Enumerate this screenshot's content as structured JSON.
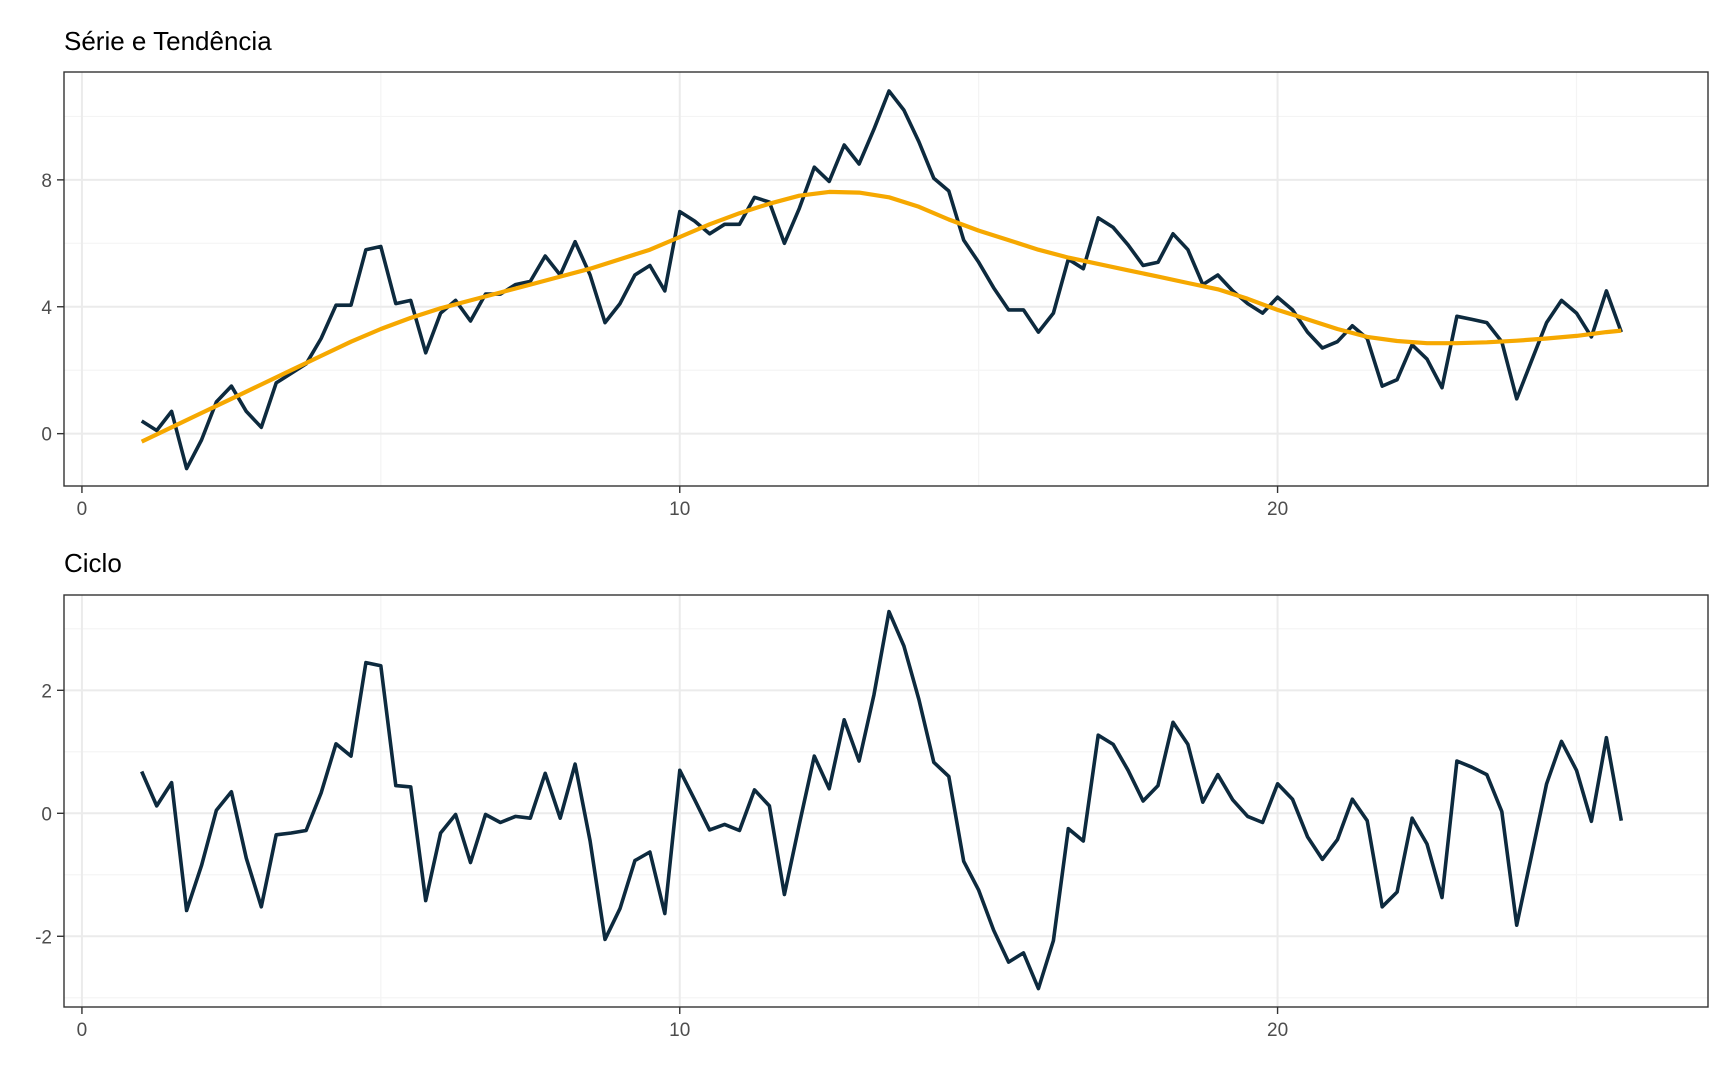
{
  "chart_data": [
    {
      "type": "line",
      "title": "Série e Tendência",
      "xlabel": "",
      "ylabel": "",
      "xlim": [
        -0.3,
        27.2
      ],
      "ylim": [
        -1.65,
        11.4
      ],
      "x_ticks": [
        0,
        10,
        20
      ],
      "y_ticks": [
        0,
        4,
        8
      ],
      "x_tick_labels": [
        "0",
        "10",
        "20"
      ],
      "y_tick_labels": [
        "0",
        "4",
        "8"
      ],
      "grid": true,
      "legend": "none",
      "series": [
        {
          "color": "#0d2a3e",
          "points": [
            [
              1.0,
              0.4
            ],
            [
              1.25,
              0.1
            ],
            [
              1.5,
              0.7
            ],
            [
              1.75,
              -1.1
            ],
            [
              2.0,
              -0.2
            ],
            [
              2.25,
              1.0
            ],
            [
              2.5,
              1.5
            ],
            [
              2.75,
              0.7
            ],
            [
              3.0,
              0.2
            ],
            [
              3.25,
              1.6
            ],
            [
              3.5,
              1.9
            ],
            [
              3.75,
              2.2
            ],
            [
              4.0,
              3.0
            ],
            [
              4.25,
              4.05
            ],
            [
              4.5,
              4.05
            ],
            [
              4.75,
              5.8
            ],
            [
              5.0,
              5.9
            ],
            [
              5.25,
              4.1
            ],
            [
              5.5,
              4.2
            ],
            [
              5.75,
              2.55
            ],
            [
              6.0,
              3.8
            ],
            [
              6.25,
              4.2
            ],
            [
              6.5,
              3.55
            ],
            [
              6.75,
              4.4
            ],
            [
              7.0,
              4.4
            ],
            [
              7.25,
              4.7
            ],
            [
              7.5,
              4.8
            ],
            [
              7.75,
              5.6
            ],
            [
              8.0,
              5.0
            ],
            [
              8.25,
              6.05
            ],
            [
              8.5,
              5.0
            ],
            [
              8.75,
              3.5
            ],
            [
              9.0,
              4.1
            ],
            [
              9.25,
              5.0
            ],
            [
              9.5,
              5.3
            ],
            [
              9.75,
              4.5
            ],
            [
              10.0,
              7.0
            ],
            [
              10.25,
              6.7
            ],
            [
              10.5,
              6.3
            ],
            [
              10.75,
              6.6
            ],
            [
              11.0,
              6.6
            ],
            [
              11.25,
              7.45
            ],
            [
              11.5,
              7.3
            ],
            [
              11.75,
              6.0
            ],
            [
              12.0,
              7.1
            ],
            [
              12.25,
              8.4
            ],
            [
              12.5,
              7.95
            ],
            [
              12.75,
              9.1
            ],
            [
              13.0,
              8.5
            ],
            [
              13.25,
              9.6
            ],
            [
              13.5,
              10.8
            ],
            [
              13.75,
              10.2
            ],
            [
              14.0,
              9.2
            ],
            [
              14.25,
              8.05
            ],
            [
              14.5,
              7.65
            ],
            [
              14.75,
              6.1
            ],
            [
              15.0,
              5.4
            ],
            [
              15.25,
              4.6
            ],
            [
              15.5,
              3.9
            ],
            [
              15.75,
              3.9
            ],
            [
              16.0,
              3.2
            ],
            [
              16.25,
              3.8
            ],
            [
              16.5,
              5.5
            ],
            [
              16.75,
              5.2
            ],
            [
              17.0,
              6.8
            ],
            [
              17.25,
              6.5
            ],
            [
              17.5,
              5.95
            ],
            [
              17.75,
              5.3
            ],
            [
              18.0,
              5.4
            ],
            [
              18.25,
              6.3
            ],
            [
              18.5,
              5.8
            ],
            [
              18.75,
              4.7
            ],
            [
              19.0,
              5.0
            ],
            [
              19.25,
              4.5
            ],
            [
              19.5,
              4.1
            ],
            [
              19.75,
              3.8
            ],
            [
              20.0,
              4.3
            ],
            [
              20.25,
              3.9
            ],
            [
              20.5,
              3.2
            ],
            [
              20.75,
              2.7
            ],
            [
              21.0,
              2.9
            ],
            [
              21.25,
              3.4
            ],
            [
              21.5,
              3.0
            ],
            [
              21.75,
              1.5
            ],
            [
              22.0,
              1.7
            ],
            [
              22.25,
              2.8
            ],
            [
              22.5,
              2.35
            ],
            [
              22.75,
              1.45
            ],
            [
              23.0,
              3.7
            ],
            [
              23.25,
              3.6
            ],
            [
              23.5,
              3.5
            ],
            [
              23.75,
              2.9
            ],
            [
              24.0,
              1.1
            ],
            [
              24.25,
              2.3
            ],
            [
              24.5,
              3.5
            ],
            [
              24.75,
              4.2
            ],
            [
              25.0,
              3.8
            ],
            [
              25.25,
              3.05
            ],
            [
              25.5,
              4.5
            ],
            [
              25.75,
              3.2
            ]
          ]
        },
        {
          "color": "#f6a800",
          "points": [
            [
              1.0,
              -0.25
            ],
            [
              1.5,
              0.2
            ],
            [
              2.0,
              0.65
            ],
            [
              2.5,
              1.1
            ],
            [
              3.0,
              1.55
            ],
            [
              3.5,
              2.0
            ],
            [
              4.0,
              2.45
            ],
            [
              4.5,
              2.9
            ],
            [
              5.0,
              3.3
            ],
            [
              5.5,
              3.65
            ],
            [
              6.0,
              3.95
            ],
            [
              6.5,
              4.2
            ],
            [
              7.0,
              4.45
            ],
            [
              7.5,
              4.7
            ],
            [
              8.0,
              4.95
            ],
            [
              8.5,
              5.2
            ],
            [
              9.0,
              5.5
            ],
            [
              9.5,
              5.8
            ],
            [
              10.0,
              6.2
            ],
            [
              10.5,
              6.6
            ],
            [
              11.0,
              6.95
            ],
            [
              11.5,
              7.25
            ],
            [
              12.0,
              7.5
            ],
            [
              12.5,
              7.62
            ],
            [
              13.0,
              7.6
            ],
            [
              13.5,
              7.45
            ],
            [
              14.0,
              7.15
            ],
            [
              14.5,
              6.75
            ],
            [
              15.0,
              6.4
            ],
            [
              15.5,
              6.1
            ],
            [
              16.0,
              5.8
            ],
            [
              16.5,
              5.55
            ],
            [
              17.0,
              5.35
            ],
            [
              17.5,
              5.15
            ],
            [
              18.0,
              4.95
            ],
            [
              18.5,
              4.75
            ],
            [
              19.0,
              4.55
            ],
            [
              19.5,
              4.25
            ],
            [
              20.0,
              3.9
            ],
            [
              20.5,
              3.6
            ],
            [
              21.0,
              3.3
            ],
            [
              21.5,
              3.05
            ],
            [
              22.0,
              2.92
            ],
            [
              22.5,
              2.85
            ],
            [
              23.0,
              2.85
            ],
            [
              23.5,
              2.88
            ],
            [
              24.0,
              2.93
            ],
            [
              24.5,
              3.0
            ],
            [
              25.0,
              3.08
            ],
            [
              25.5,
              3.2
            ],
            [
              25.75,
              3.25
            ]
          ]
        }
      ]
    },
    {
      "type": "line",
      "title": "Ciclo",
      "xlabel": "",
      "ylabel": "",
      "xlim": [
        -0.3,
        27.2
      ],
      "ylim": [
        -3.15,
        3.55
      ],
      "x_ticks": [
        0,
        10,
        20
      ],
      "y_ticks": [
        -2,
        0,
        2
      ],
      "x_tick_labels": [
        "0",
        "10",
        "20"
      ],
      "y_tick_labels": [
        "-2",
        "0",
        "2"
      ],
      "grid": true,
      "legend": "none",
      "series": [
        {
          "color": "#0d2a3e",
          "points": [
            [
              1.0,
              0.68
            ],
            [
              1.25,
              0.12
            ],
            [
              1.5,
              0.5
            ],
            [
              1.75,
              -1.58
            ],
            [
              2.0,
              -0.85
            ],
            [
              2.25,
              0.05
            ],
            [
              2.5,
              0.35
            ],
            [
              2.75,
              -0.73
            ],
            [
              3.0,
              -1.52
            ],
            [
              3.25,
              -0.35
            ],
            [
              3.5,
              -0.32
            ],
            [
              3.75,
              -0.28
            ],
            [
              4.0,
              0.33
            ],
            [
              4.25,
              1.13
            ],
            [
              4.5,
              0.93
            ],
            [
              4.75,
              2.45
            ],
            [
              5.0,
              2.4
            ],
            [
              5.25,
              0.45
            ],
            [
              5.5,
              0.43
            ],
            [
              5.75,
              -1.42
            ],
            [
              6.0,
              -0.32
            ],
            [
              6.25,
              -0.02
            ],
            [
              6.5,
              -0.8
            ],
            [
              6.75,
              -0.02
            ],
            [
              7.0,
              -0.15
            ],
            [
              7.25,
              -0.05
            ],
            [
              7.5,
              -0.08
            ],
            [
              7.75,
              0.65
            ],
            [
              8.0,
              -0.08
            ],
            [
              8.25,
              0.8
            ],
            [
              8.5,
              -0.45
            ],
            [
              8.75,
              -2.05
            ],
            [
              9.0,
              -1.55
            ],
            [
              9.25,
              -0.77
            ],
            [
              9.5,
              -0.63
            ],
            [
              9.75,
              -1.63
            ],
            [
              10.0,
              0.7
            ],
            [
              10.25,
              0.22
            ],
            [
              10.5,
              -0.27
            ],
            [
              10.75,
              -0.18
            ],
            [
              11.0,
              -0.28
            ],
            [
              11.25,
              0.38
            ],
            [
              11.5,
              0.12
            ],
            [
              11.75,
              -1.32
            ],
            [
              12.0,
              -0.18
            ],
            [
              12.25,
              0.93
            ],
            [
              12.5,
              0.4
            ],
            [
              12.75,
              1.52
            ],
            [
              13.0,
              0.85
            ],
            [
              13.25,
              1.93
            ],
            [
              13.5,
              3.28
            ],
            [
              13.75,
              2.72
            ],
            [
              14.0,
              1.85
            ],
            [
              14.25,
              0.83
            ],
            [
              14.5,
              0.6
            ],
            [
              14.75,
              -0.78
            ],
            [
              15.0,
              -1.25
            ],
            [
              15.25,
              -1.9
            ],
            [
              15.5,
              -2.42
            ],
            [
              15.75,
              -2.27
            ],
            [
              16.0,
              -2.85
            ],
            [
              16.25,
              -2.07
            ],
            [
              16.5,
              -0.25
            ],
            [
              16.75,
              -0.45
            ],
            [
              17.0,
              1.27
            ],
            [
              17.25,
              1.12
            ],
            [
              17.5,
              0.7
            ],
            [
              17.75,
              0.2
            ],
            [
              18.0,
              0.45
            ],
            [
              18.25,
              1.48
            ],
            [
              18.5,
              1.12
            ],
            [
              18.75,
              0.18
            ],
            [
              19.0,
              0.63
            ],
            [
              19.25,
              0.22
            ],
            [
              19.5,
              -0.05
            ],
            [
              19.75,
              -0.15
            ],
            [
              20.0,
              0.48
            ],
            [
              20.25,
              0.23
            ],
            [
              20.5,
              -0.38
            ],
            [
              20.75,
              -0.75
            ],
            [
              21.0,
              -0.43
            ],
            [
              21.25,
              0.23
            ],
            [
              21.5,
              -0.12
            ],
            [
              21.75,
              -1.52
            ],
            [
              22.0,
              -1.28
            ],
            [
              22.25,
              -0.08
            ],
            [
              22.5,
              -0.5
            ],
            [
              22.75,
              -1.37
            ],
            [
              23.0,
              0.85
            ],
            [
              23.25,
              0.75
            ],
            [
              23.5,
              0.63
            ],
            [
              23.75,
              0.03
            ],
            [
              24.0,
              -1.82
            ],
            [
              24.25,
              -0.68
            ],
            [
              24.5,
              0.48
            ],
            [
              24.75,
              1.17
            ],
            [
              25.0,
              0.7
            ],
            [
              25.25,
              -0.13
            ],
            [
              25.5,
              1.23
            ],
            [
              25.75,
              -0.12
            ]
          ]
        }
      ]
    }
  ]
}
